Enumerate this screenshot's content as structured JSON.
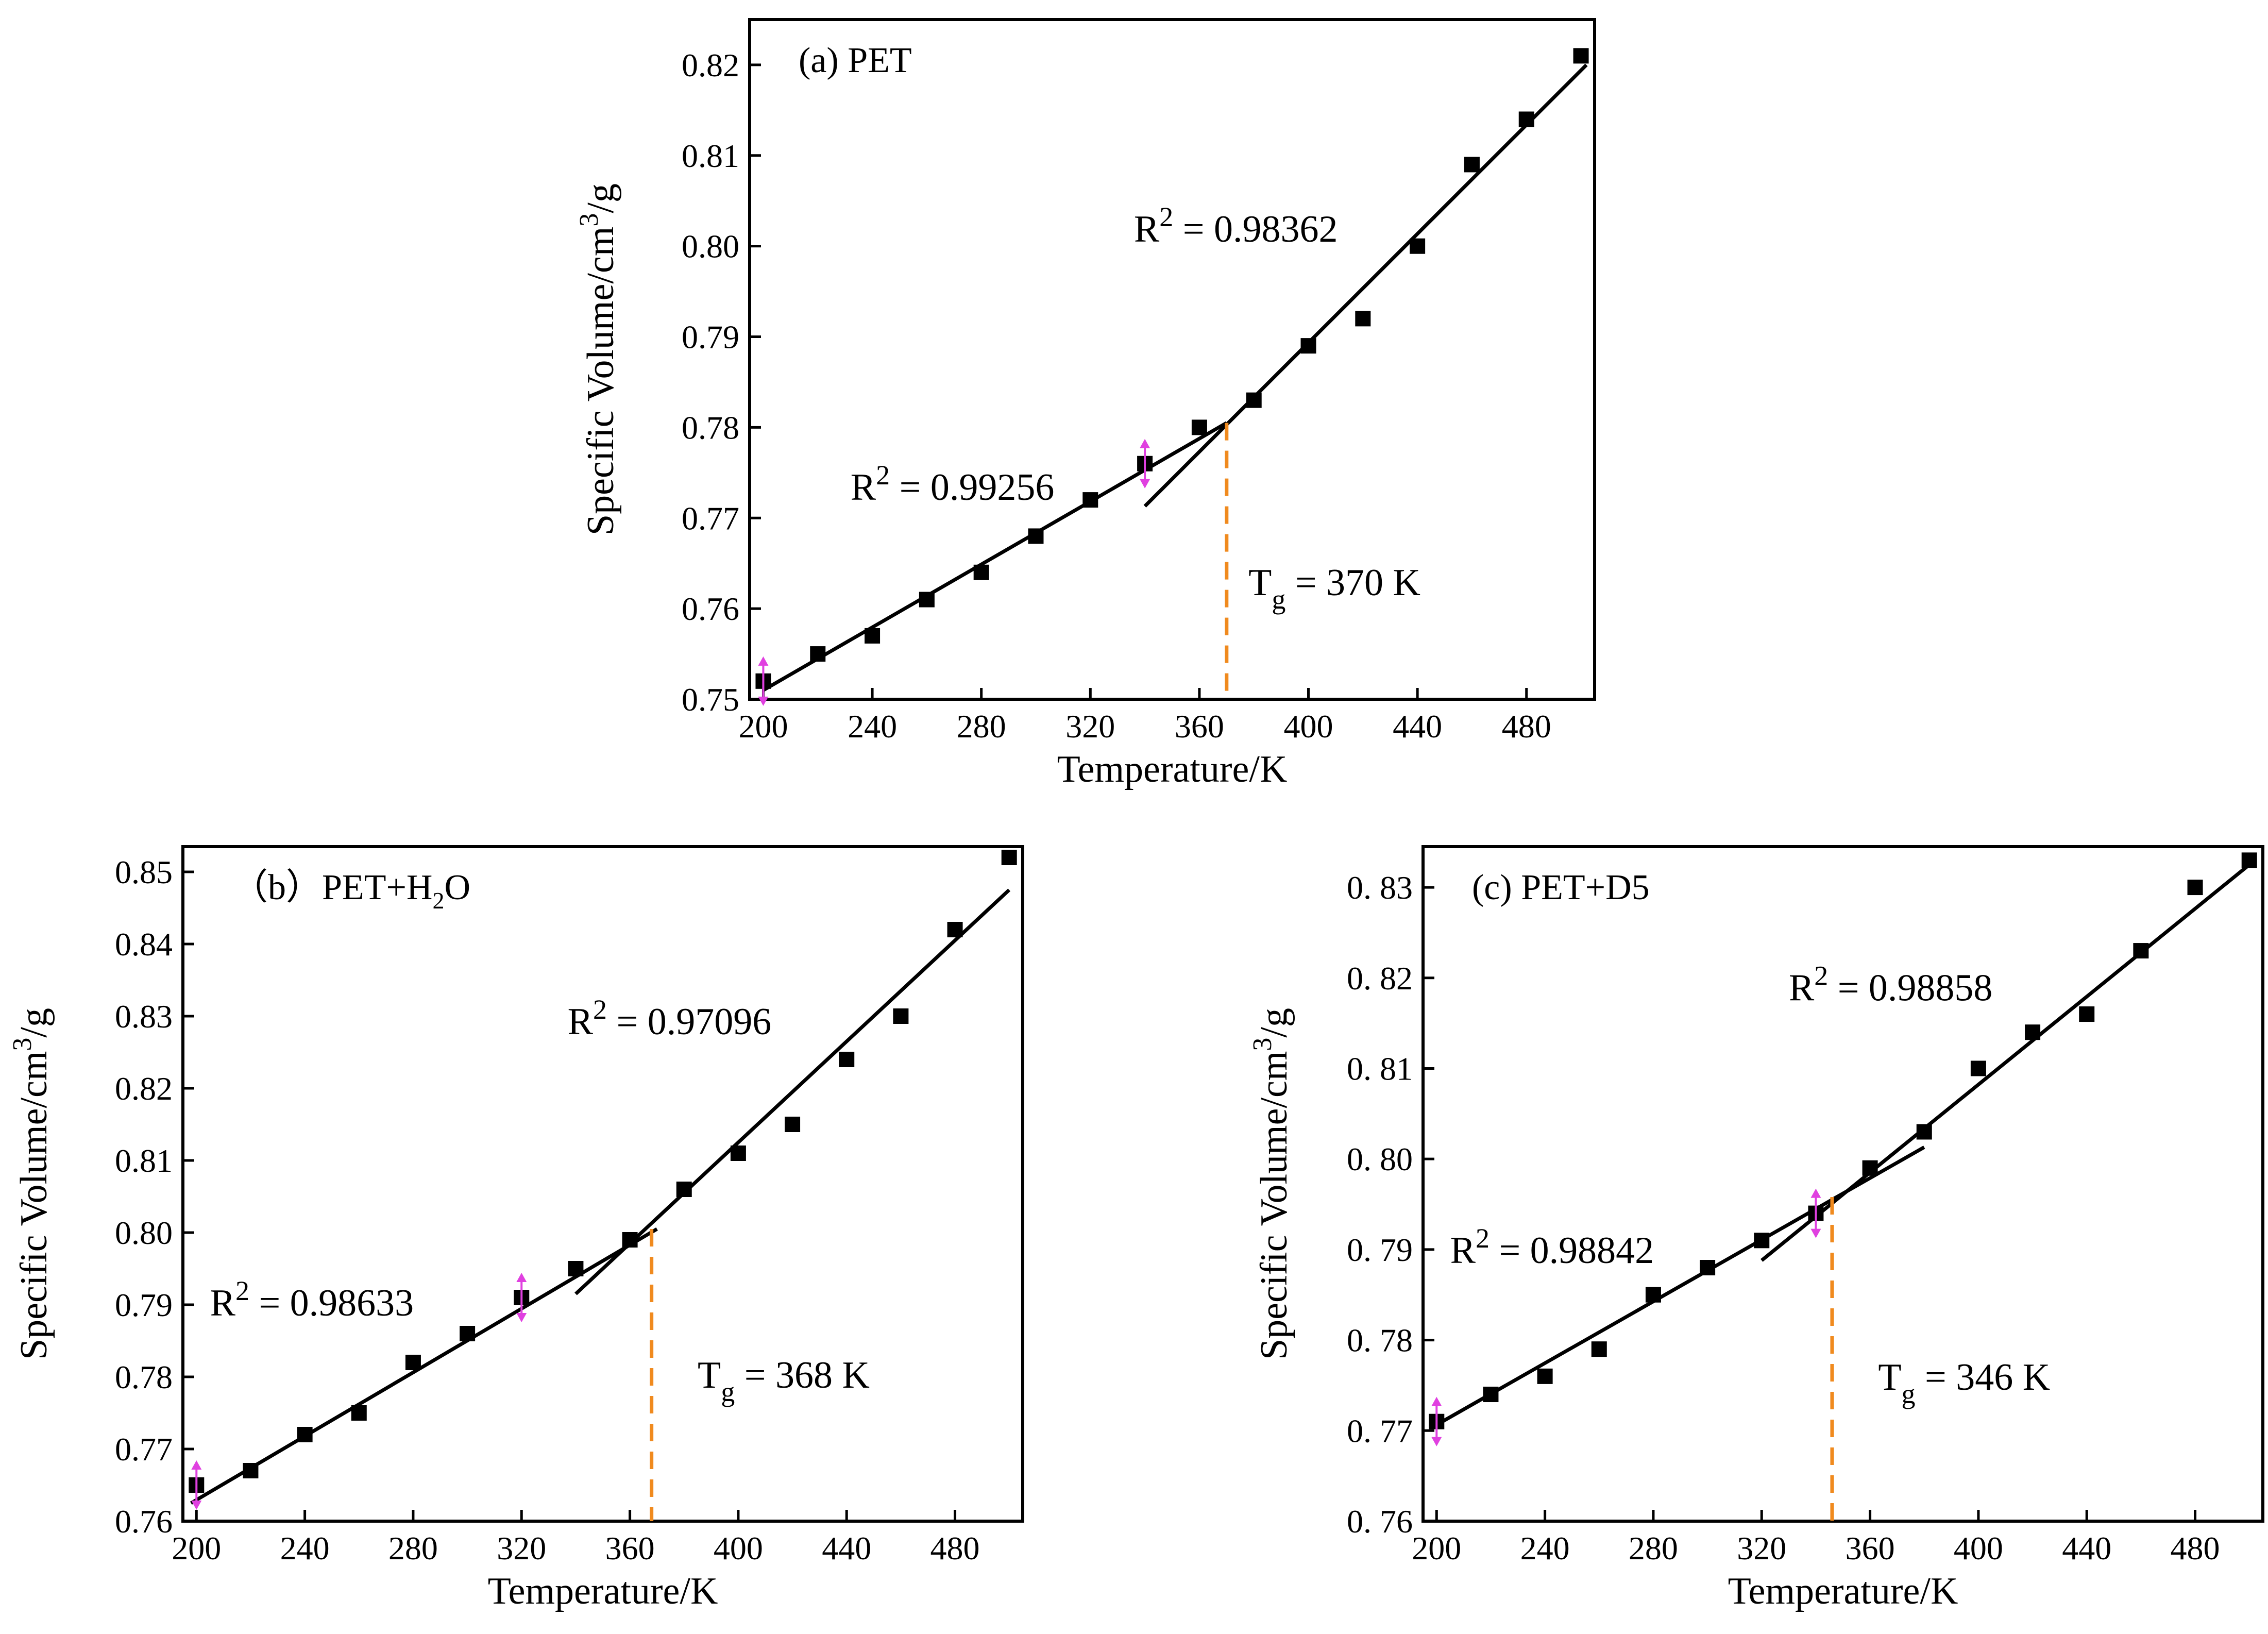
{
  "figure": {
    "accent_colors": {
      "tg_line": "#F08A1E",
      "error_bar": "#E040E0",
      "data": "#000000"
    }
  },
  "chart_data": [
    {
      "type": "scatter",
      "panel_id": "a",
      "title": "(a) PET",
      "xlabel": "Temperature/K",
      "ylabel": "Specific Volume/cm3/g",
      "ylabel_base": "Specific Volume/cm",
      "ylabel_sup": "3",
      "ylabel_tail": "/g",
      "xlim": [
        195,
        505
      ],
      "ylim": [
        0.75,
        0.825
      ],
      "xticks": [
        200,
        240,
        280,
        320,
        360,
        400,
        440,
        480
      ],
      "xtick_labels": [
        "200",
        "240",
        "280",
        "320",
        "360",
        "400",
        "440",
        "480"
      ],
      "yticks": [
        0.75,
        0.76,
        0.77,
        0.78,
        0.79,
        0.8,
        0.81,
        0.82
      ],
      "ytick_labels": [
        "0.75",
        "0.76",
        "0.77",
        "0.78",
        "0.79",
        "0.80",
        "0.81",
        "0.82"
      ],
      "x": [
        200,
        220,
        240,
        260,
        280,
        300,
        320,
        340,
        360,
        380,
        400,
        420,
        440,
        460,
        480,
        500
      ],
      "y": [
        0.752,
        0.755,
        0.757,
        0.761,
        0.764,
        0.768,
        0.772,
        0.776,
        0.78,
        0.783,
        0.789,
        0.792,
        0.8,
        0.809,
        0.814,
        0.821
      ],
      "fit_low": {
        "x": [
          200,
          370
        ],
        "y": [
          0.751,
          0.7805
        ]
      },
      "fit_high": {
        "x": [
          340,
          502
        ],
        "y": [
          0.7713,
          0.82
        ]
      },
      "r2_low": {
        "prefix": "R",
        "sup": "2",
        "text": " = 0.99256",
        "x": 232,
        "y": 0.772
      },
      "r2_high": {
        "prefix": "R",
        "sup": "2",
        "text": " = 0.98362",
        "x": 336,
        "y": 0.8005
      },
      "tg": {
        "value": 370,
        "y_top": 0.7805,
        "prefix": "T",
        "sub": "g",
        "text": " = 370 K",
        "label_x": 378,
        "label_y": 0.7615
      },
      "error_markers": [
        {
          "x": 200,
          "y": 0.752
        },
        {
          "x": 340,
          "y": 0.776
        }
      ]
    },
    {
      "type": "scatter",
      "panel_id": "b",
      "title_prefix": "（b）PET+H",
      "title_sub": "2",
      "title_suffix": "O",
      "xlabel": "Temperature/K",
      "ylabel": "Specific Volume/cm3/g",
      "ylabel_base": "Specific Volume/cm",
      "ylabel_sup": "3",
      "ylabel_tail": "/g",
      "xlim": [
        195,
        505
      ],
      "ylim": [
        0.76,
        0.8535
      ],
      "xticks": [
        200,
        240,
        280,
        320,
        360,
        400,
        440,
        480
      ],
      "xtick_labels": [
        "200",
        "240",
        "280",
        "320",
        "360",
        "400",
        "440",
        "480"
      ],
      "yticks": [
        0.76,
        0.77,
        0.78,
        0.79,
        0.8,
        0.81,
        0.82,
        0.83,
        0.84,
        0.85
      ],
      "ytick_labels": [
        "0.76",
        "0.77",
        "0.78",
        "0.79",
        "0.80",
        "0.81",
        "0.82",
        "0.83",
        "0.84",
        "0.85"
      ],
      "x": [
        200,
        220,
        240,
        260,
        280,
        300,
        320,
        340,
        360,
        380,
        400,
        420,
        440,
        460,
        480,
        500
      ],
      "y": [
        0.765,
        0.767,
        0.772,
        0.775,
        0.782,
        0.786,
        0.791,
        0.795,
        0.799,
        0.806,
        0.811,
        0.815,
        0.824,
        0.83,
        0.842,
        0.852
      ],
      "fit_low": {
        "x": [
          198,
          370
        ],
        "y": [
          0.7625,
          0.8005
        ]
      },
      "fit_high": {
        "x": [
          340,
          500
        ],
        "y": [
          0.7915,
          0.8475
        ]
      },
      "r2_low": {
        "prefix": "R",
        "sup": "2",
        "text": " = 0.98633",
        "x": 205,
        "y": 0.7885
      },
      "r2_high": {
        "prefix": "R",
        "sup": "2",
        "text": " = 0.97096",
        "x": 337,
        "y": 0.8275
      },
      "tg": {
        "value": 368,
        "y_top": 0.8005,
        "prefix": "T",
        "sub": "g",
        "text": " = 368 K",
        "label_x": 385,
        "label_y": 0.7785
      },
      "error_markers": [
        {
          "x": 200,
          "y": 0.765
        },
        {
          "x": 320,
          "y": 0.791
        }
      ]
    },
    {
      "type": "scatter",
      "panel_id": "c",
      "title": "(c)  PET+D5",
      "xlabel": "Temperature/K",
      "ylabel": "Specific Volume/cm3/g",
      "ylabel_base": "Specific Volume/cm",
      "ylabel_sup": "3",
      "ylabel_tail": "/g",
      "xlim": [
        195,
        505
      ],
      "ylim": [
        0.76,
        0.8345
      ],
      "xticks": [
        200,
        240,
        280,
        320,
        360,
        400,
        440,
        480
      ],
      "xtick_labels": [
        "200",
        "240",
        "280",
        "320",
        "360",
        "400",
        "440",
        "480"
      ],
      "yticks": [
        0.76,
        0.77,
        0.78,
        0.79,
        0.8,
        0.81,
        0.82,
        0.83
      ],
      "ytick_labels": [
        "0. 76",
        "0. 77",
        "0. 78",
        "0. 79",
        "0. 80",
        "0. 81",
        "0. 82",
        "0. 83"
      ],
      "x": [
        200,
        220,
        240,
        260,
        280,
        300,
        320,
        340,
        360,
        380,
        400,
        420,
        440,
        460,
        480,
        500
      ],
      "y": [
        0.771,
        0.774,
        0.776,
        0.779,
        0.785,
        0.788,
        0.791,
        0.794,
        0.799,
        0.803,
        0.81,
        0.814,
        0.816,
        0.823,
        0.83,
        0.833
      ],
      "fit_low": {
        "x": [
          198,
          380
        ],
        "y": [
          0.7703,
          0.8013
        ]
      },
      "fit_high": {
        "x": [
          320,
          500
        ],
        "y": [
          0.7888,
          0.8325
        ]
      },
      "r2_low": {
        "prefix": "R",
        "sup": "2",
        "text": " = 0.98842",
        "x": 205,
        "y": 0.7885
      },
      "r2_high": {
        "prefix": "R",
        "sup": "2",
        "text": " = 0.98858",
        "x": 330,
        "y": 0.8175
      },
      "tg": {
        "value": 346,
        "y_top": 0.7958,
        "prefix": "T",
        "sub": "g",
        "text": " = 346 K",
        "label_x": 363,
        "label_y": 0.7745
      },
      "error_markers": [
        {
          "x": 200,
          "y": 0.771
        },
        {
          "x": 340,
          "y": 0.794
        }
      ]
    }
  ]
}
